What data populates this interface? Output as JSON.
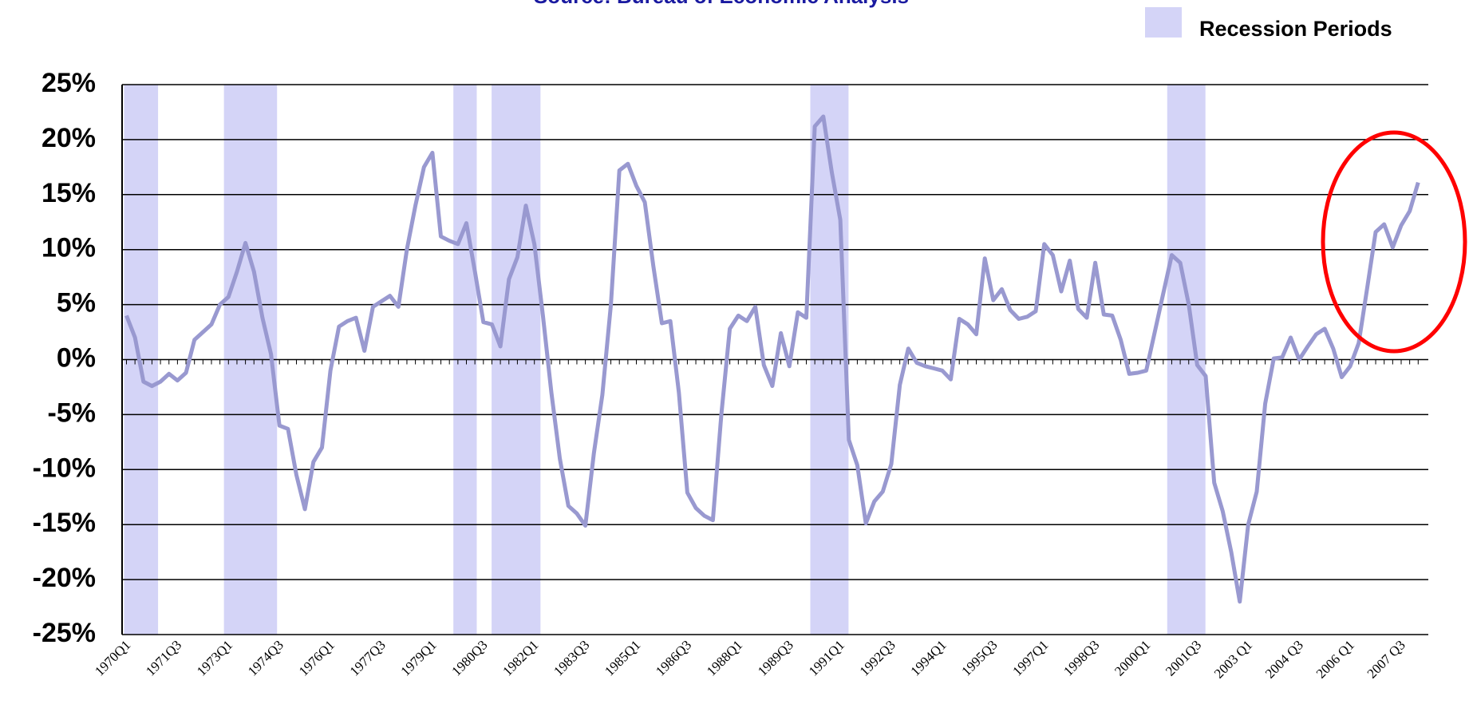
{
  "chart_data": {
    "type": "line",
    "title": "Source: Bureau of Economic Analysis",
    "legend_label": "Recession Periods",
    "color": "#9999d0",
    "band_color": "#d4d4f7",
    "categories": [
      "1970Q1",
      null,
      null,
      null,
      null,
      null,
      "1971Q3",
      null,
      null,
      null,
      null,
      null,
      "1973Q1",
      null,
      null,
      null,
      null,
      null,
      "1974Q3",
      null,
      null,
      null,
      null,
      null,
      "1976Q1",
      null,
      null,
      null,
      null,
      null,
      "1977Q3",
      null,
      null,
      null,
      null,
      null,
      "1979Q1",
      null,
      null,
      null,
      null,
      null,
      "1980Q3",
      null,
      null,
      null,
      null,
      null,
      "1982Q1",
      null,
      null,
      null,
      null,
      null,
      "1983Q3",
      null,
      null,
      null,
      null,
      null,
      "1985Q1",
      null,
      null,
      null,
      null,
      null,
      "1986Q3",
      null,
      null,
      null,
      null,
      null,
      "1988Q1",
      null,
      null,
      null,
      null,
      null,
      "1989Q3",
      null,
      null,
      null,
      null,
      null,
      "1991Q1",
      null,
      null,
      null,
      null,
      null,
      "1992Q3",
      null,
      null,
      null,
      null,
      null,
      "1994Q1",
      null,
      null,
      null,
      null,
      null,
      "1995Q3",
      null,
      null,
      null,
      null,
      null,
      "1997Q1",
      null,
      null,
      null,
      null,
      null,
      "1998Q3",
      null,
      null,
      null,
      null,
      null,
      "2000Q1",
      null,
      null,
      null,
      null,
      null,
      "2001Q3",
      null,
      null,
      null,
      null,
      null,
      "2003 Q1",
      null,
      null,
      null,
      null,
      null,
      "2004 Q3",
      null,
      null,
      null,
      null,
      null,
      "2006 Q1",
      null,
      null,
      null,
      null,
      null,
      "2007 Q3",
      null,
      null
    ],
    "values": [
      4,
      2,
      -2,
      -2.4,
      -2,
      -1.3,
      -1.9,
      -1.2,
      1.8,
      2.5,
      3.2,
      5,
      5.7,
      8,
      10.6,
      8,
      3.8,
      0.5,
      -6,
      -6.3,
      -10.5,
      -13.6,
      -9.3,
      -8,
      -1,
      3,
      3.5,
      3.8,
      0.8,
      4.8,
      5.3,
      5.8,
      4.8,
      10,
      14,
      17.5,
      18.8,
      11.2,
      10.8,
      10.5,
      12.4,
      8,
      3.4,
      3.2,
      1.2,
      7.3,
      9.3,
      14,
      10.5,
      4,
      -3,
      -9,
      -13.3,
      -14,
      -15.1,
      -8.5,
      -3.2,
      5,
      17.2,
      17.8,
      15.8,
      14.3,
      8.5,
      3.3,
      3.5,
      -3,
      -12.1,
      -13.5,
      -14.2,
      -14.6,
      -5,
      2.8,
      4,
      3.5,
      4.8,
      -0.5,
      -2.4,
      2.4,
      -0.6,
      4.3,
      3.8,
      21.2,
      22.1,
      17,
      12.7,
      -7.3,
      -9.6,
      -14.9,
      -12.9,
      -12,
      -9.5,
      -2.3,
      1,
      -0.3,
      -0.6,
      -0.8,
      -1,
      -1.8,
      3.7,
      3.2,
      2.3,
      9.2,
      5.4,
      6.4,
      4.5,
      3.7,
      3.9,
      4.4,
      10.5,
      9.5,
      6.2,
      9,
      4.6,
      3.8,
      8.8,
      4.1,
      4,
      1.8,
      -1.3,
      -1.2,
      -1,
      2.5,
      6,
      9.5,
      8.8,
      5,
      -0.5,
      -1.5,
      -11.2,
      -13.8,
      -17.5,
      -22,
      -15,
      -12,
      -4,
      0.1,
      0.2,
      2,
      0,
      1.2,
      2.3,
      2.8,
      1,
      -1.6,
      -0.6,
      1.5,
      6.5,
      11.6,
      12.3,
      10.2,
      12.2,
      13.5,
      16.1
    ],
    "recession_periods": [
      [
        0,
        4
      ],
      [
        11.75,
        18
      ],
      [
        38.75,
        41.5
      ],
      [
        43.25,
        49
      ],
      [
        80.75,
        85.25
      ],
      [
        122.75,
        127.25
      ]
    ],
    "ylim": [
      -25,
      25
    ],
    "yticks": [
      {
        "value": -25,
        "label": "-25%"
      },
      {
        "value": -20,
        "label": "-20%"
      },
      {
        "value": -15,
        "label": "-15%"
      },
      {
        "value": -10,
        "label": "-10%"
      },
      {
        "value": -5,
        "label": "-5%"
      },
      {
        "value": 0,
        "label": "0%"
      },
      {
        "value": 5,
        "label": "5%"
      },
      {
        "value": 10,
        "label": "10%"
      },
      {
        "value": 15,
        "label": "15%"
      },
      {
        "value": 20,
        "label": "20%"
      },
      {
        "value": 25,
        "label": "25%"
      }
    ],
    "grid": true
  }
}
